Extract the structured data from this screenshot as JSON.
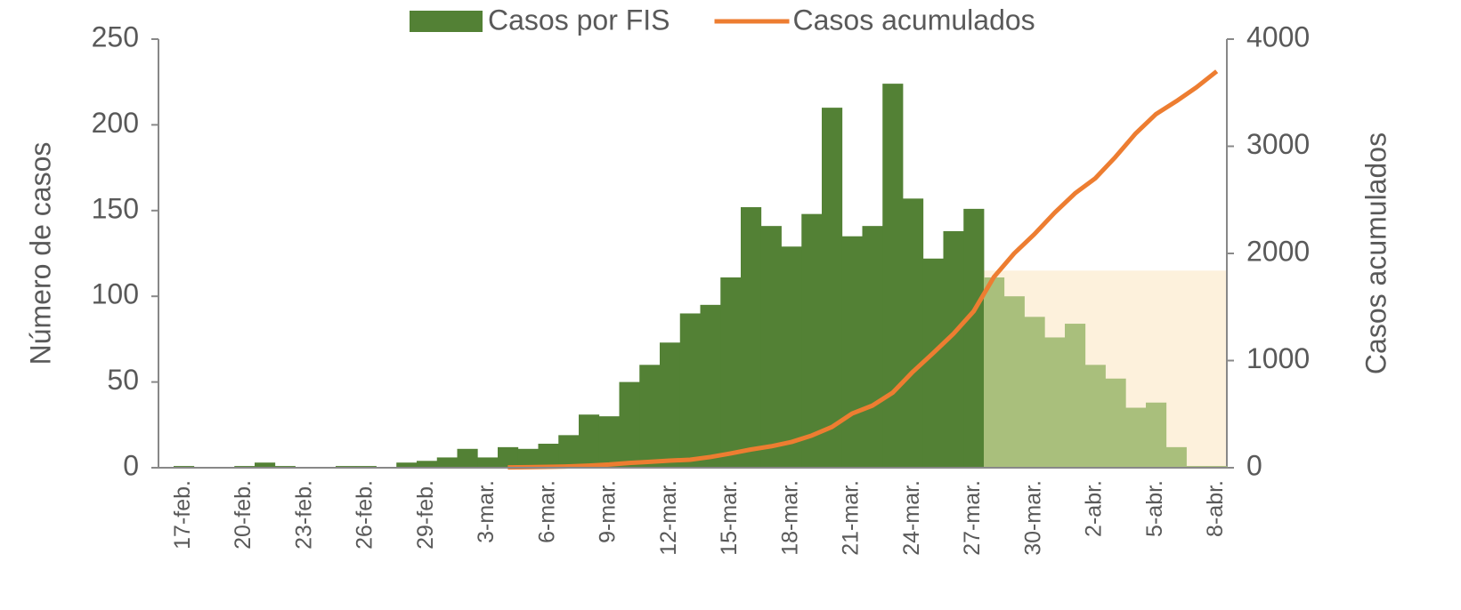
{
  "chart_data": {
    "type": "bar_line",
    "categories": [
      "17-feb.",
      null,
      null,
      "20-feb.",
      null,
      null,
      "23-feb.",
      null,
      null,
      "26-feb.",
      null,
      null,
      "29-feb.",
      null,
      null,
      "3-mar.",
      null,
      null,
      "6-mar.",
      null,
      null,
      "9-mar.",
      null,
      null,
      "12-mar.",
      null,
      null,
      "15-mar.",
      null,
      null,
      "18-mar.",
      null,
      null,
      "21-mar.",
      null,
      null,
      "24-mar.",
      null,
      null,
      "27-mar.",
      null,
      null,
      "30-mar.",
      null,
      null,
      "2-abr.",
      null,
      null,
      "5-abr.",
      null,
      null,
      "8-abr."
    ],
    "series": [
      {
        "name": "Casos por FIS",
        "color": "#538135",
        "values": [
          1,
          0,
          0,
          1,
          3,
          1,
          0,
          0,
          1,
          1,
          0,
          3,
          4,
          6,
          11,
          6,
          12,
          11,
          14,
          19,
          31,
          30,
          50,
          60,
          73,
          90,
          95,
          111,
          152,
          141,
          129,
          148,
          210,
          135,
          141,
          224,
          157,
          122,
          138,
          151,
          111,
          100,
          88,
          76,
          84,
          60,
          52,
          35,
          38,
          12,
          1,
          1
        ],
        "colors": [
          "#538135",
          "#538135",
          "#538135",
          "#538135",
          "#538135",
          "#538135",
          "#538135",
          "#538135",
          "#538135",
          "#538135",
          "#538135",
          "#538135",
          "#538135",
          "#538135",
          "#538135",
          "#538135",
          "#538135",
          "#538135",
          "#538135",
          "#538135",
          "#538135",
          "#538135",
          "#538135",
          "#538135",
          "#538135",
          "#538135",
          "#538135",
          "#538135",
          "#538135",
          "#538135",
          "#538135",
          "#538135",
          "#538135",
          "#538135",
          "#538135",
          "#538135",
          "#538135",
          "#538135",
          "#538135",
          "#538135",
          "#a9bf7c",
          "#a9bf7c",
          "#a9bf7c",
          "#a9bf7c",
          "#a9bf7c",
          "#a9bf7c",
          "#a9bf7c",
          "#a9bf7c",
          "#a9bf7c",
          "#a9bf7c",
          "#a9bf7c",
          "#a9bf7c"
        ]
      },
      {
        "name": "Casos acumulados",
        "color": "#ed7d31",
        "type": "line",
        "axis": "y2",
        "values": [
          null,
          null,
          null,
          null,
          null,
          null,
          null,
          null,
          null,
          null,
          null,
          null,
          null,
          null,
          null,
          null,
          3,
          5,
          8,
          12,
          20,
          30,
          45,
          55,
          66,
          75,
          100,
          133,
          170,
          200,
          240,
          300,
          380,
          506,
          580,
          700,
          896,
          1070,
          1250,
          1460,
          1780,
          2000,
          2180,
          2380,
          2560,
          2700,
          2900,
          3120,
          3300,
          3420,
          3550,
          3700
        ]
      }
    ],
    "shaded_band": {
      "color": "#fdf1dc",
      "from_index": 40,
      "to_index": 51,
      "top": 115
    },
    "ylabel": "Número de casos",
    "y2label": "Casos acumulados",
    "ylim": [
      0,
      250
    ],
    "yticks": [
      0,
      50,
      100,
      150,
      200,
      250
    ],
    "y2lim": [
      0,
      4000
    ],
    "y2ticks": [
      0,
      1000,
      2000,
      3000,
      4000
    ],
    "legend": "top"
  }
}
